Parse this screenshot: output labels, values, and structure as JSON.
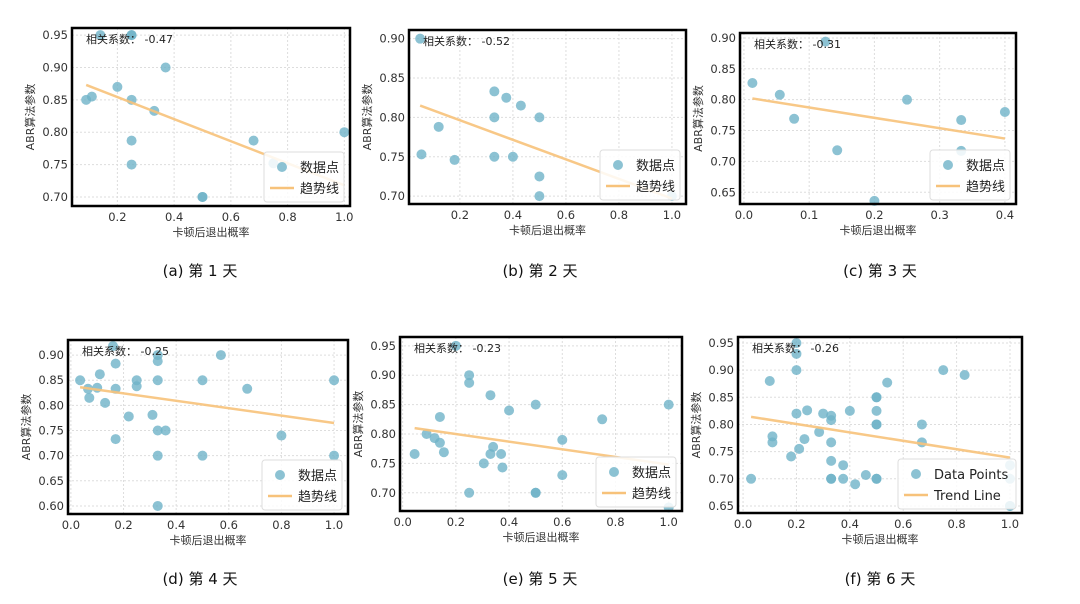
{
  "colors": {
    "points": "#6fb3c8",
    "trend": "#f7c27a",
    "frame": "#000000",
    "grid": "#dddddd"
  },
  "chart_data": [
    {
      "type": "scatter",
      "caption": "(a)  第 1 天",
      "annotation": "相关系数： -0.47",
      "xlabel": "卡顿后退出概率",
      "ylabel": "ABR算法参数",
      "legend": {
        "points": "数据点",
        "trend": "趋势线",
        "position": "lower-right"
      },
      "grid": true,
      "xlim": [
        0.04,
        1.02
      ],
      "ylim": [
        0.686,
        0.961
      ],
      "xticks": [
        "0.2",
        "0.4",
        "0.6",
        "0.8",
        "1.0"
      ],
      "yticks": [
        "0.70",
        "0.75",
        "0.80",
        "0.85",
        "0.90",
        "0.95"
      ],
      "points": [
        [
          0.14,
          0.95
        ],
        [
          0.25,
          0.95
        ],
        [
          0.25,
          0.95
        ],
        [
          0.37,
          0.9
        ],
        [
          0.2,
          0.87
        ],
        [
          0.09,
          0.85
        ],
        [
          0.11,
          0.855
        ],
        [
          0.25,
          0.85
        ],
        [
          0.33,
          0.833
        ],
        [
          0.25,
          0.787
        ],
        [
          0.25,
          0.75
        ],
        [
          0.5,
          0.7
        ],
        [
          0.5,
          0.7
        ],
        [
          0.68,
          0.787
        ],
        [
          0.75,
          0.752
        ],
        [
          1.0,
          0.8
        ]
      ],
      "trend": [
        [
          0.09,
          0.873
        ],
        [
          1.0,
          0.718
        ]
      ]
    },
    {
      "type": "scatter",
      "caption": "(b)  第 2 天",
      "annotation": "相关系数： -0.52",
      "xlabel": "卡顿后退出概率",
      "ylabel": "ABR算法参数",
      "legend": {
        "points": "数据点",
        "trend": "趋势线",
        "position": "lower-right"
      },
      "grid": true,
      "xlim": [
        0.008,
        1.053
      ],
      "ylim": [
        0.69,
        0.911
      ],
      "xticks": [
        "0.2",
        "0.4",
        "0.6",
        "0.8",
        "1.0"
      ],
      "yticks": [
        "0.70",
        "0.75",
        "0.80",
        "0.85",
        "0.90"
      ],
      "points": [
        [
          0.05,
          0.9
        ],
        [
          0.33,
          0.833
        ],
        [
          0.375,
          0.825
        ],
        [
          0.43,
          0.815
        ],
        [
          0.33,
          0.8
        ],
        [
          0.5,
          0.8
        ],
        [
          0.12,
          0.788
        ],
        [
          0.055,
          0.753
        ],
        [
          0.18,
          0.746
        ],
        [
          0.33,
          0.75
        ],
        [
          0.4,
          0.75
        ],
        [
          0.5,
          0.725
        ],
        [
          0.5,
          0.7
        ],
        [
          1.0,
          0.7
        ]
      ],
      "trend": [
        [
          0.05,
          0.815
        ],
        [
          1.0,
          0.697
        ]
      ]
    },
    {
      "type": "scatter",
      "caption": "(c)  第 3 天",
      "annotation": "相关系数： -0.31",
      "xlabel": "卡顿后退出概率",
      "ylabel": "ABR算法参数",
      "legend": {
        "points": "数据点",
        "trend": "趋势线",
        "position": "lower-right"
      },
      "grid": true,
      "xlim": [
        -0.006,
        0.417
      ],
      "ylim": [
        0.631,
        0.908
      ],
      "xticks": [
        "0.0",
        "0.1",
        "0.2",
        "0.3",
        "0.4"
      ],
      "yticks": [
        "0.65",
        "0.70",
        "0.75",
        "0.80",
        "0.85",
        "0.90"
      ],
      "points": [
        [
          0.013,
          0.827
        ],
        [
          0.055,
          0.808
        ],
        [
          0.077,
          0.769
        ],
        [
          0.125,
          0.894
        ],
        [
          0.143,
          0.718
        ],
        [
          0.2,
          0.636
        ],
        [
          0.25,
          0.8
        ],
        [
          0.333,
          0.767
        ],
        [
          0.333,
          0.717
        ],
        [
          0.4,
          0.78
        ]
      ],
      "trend": [
        [
          0.013,
          0.802
        ],
        [
          0.4,
          0.737
        ]
      ]
    },
    {
      "type": "scatter",
      "caption": "(d)  第 4 天",
      "annotation": "相关系数： -0.25",
      "xlabel": "卡顿后退出概率",
      "ylabel": "ABR算法参数",
      "legend": {
        "points": "数据点",
        "trend": "趋势线",
        "position": "lower-right"
      },
      "grid": true,
      "xlim": [
        -0.011,
        1.053
      ],
      "ylim": [
        0.584,
        0.93
      ],
      "xticks": [
        "0.0",
        "0.2",
        "0.4",
        "0.6",
        "0.8",
        "1.0"
      ],
      "yticks": [
        "0.60",
        "0.65",
        "0.70",
        "0.75",
        "0.80",
        "0.85",
        "0.90"
      ],
      "points": [
        [
          0.035,
          0.85
        ],
        [
          0.065,
          0.833
        ],
        [
          0.07,
          0.815
        ],
        [
          0.1,
          0.835
        ],
        [
          0.11,
          0.862
        ],
        [
          0.13,
          0.805
        ],
        [
          0.16,
          0.918
        ],
        [
          0.17,
          0.883
        ],
        [
          0.17,
          0.833
        ],
        [
          0.17,
          0.733
        ],
        [
          0.22,
          0.778
        ],
        [
          0.25,
          0.85
        ],
        [
          0.25,
          0.838
        ],
        [
          0.31,
          0.781
        ],
        [
          0.33,
          0.9
        ],
        [
          0.33,
          0.888
        ],
        [
          0.33,
          0.85
        ],
        [
          0.33,
          0.75
        ],
        [
          0.36,
          0.75
        ],
        [
          0.33,
          0.7
        ],
        [
          0.33,
          0.6
        ],
        [
          0.5,
          0.85
        ],
        [
          0.5,
          0.7
        ],
        [
          0.57,
          0.9
        ],
        [
          0.67,
          0.833
        ],
        [
          0.8,
          0.74
        ],
        [
          1.0,
          0.85
        ],
        [
          1.0,
          0.7
        ]
      ],
      "trend": [
        [
          0.035,
          0.836
        ],
        [
          1.0,
          0.765
        ]
      ]
    },
    {
      "type": "scatter",
      "caption": "(e)  第 5 天",
      "annotation": "相关系数： -0.23",
      "xlabel": "卡顿后退出概率",
      "ylabel": "ABR算法参数",
      "legend": {
        "points": "数据点",
        "trend": "趋势线",
        "position": "lower-right"
      },
      "grid": true,
      "xlim": [
        -0.01,
        1.05
      ],
      "ylim": [
        0.669,
        0.965
      ],
      "xticks": [
        "0.0",
        "0.2",
        "0.4",
        "0.6",
        "0.8",
        "1.0"
      ],
      "yticks": [
        "0.70",
        "0.75",
        "0.80",
        "0.85",
        "0.90",
        "0.95"
      ],
      "points": [
        [
          0.2,
          0.95
        ],
        [
          0.25,
          0.9
        ],
        [
          0.25,
          0.887
        ],
        [
          0.33,
          0.866
        ],
        [
          0.4,
          0.84
        ],
        [
          0.5,
          0.85
        ],
        [
          1.0,
          0.85
        ],
        [
          0.75,
          0.825
        ],
        [
          0.14,
          0.829
        ],
        [
          0.09,
          0.8
        ],
        [
          0.12,
          0.793
        ],
        [
          0.14,
          0.785
        ],
        [
          0.155,
          0.769
        ],
        [
          0.045,
          0.766
        ],
        [
          0.34,
          0.778
        ],
        [
          0.33,
          0.766
        ],
        [
          0.37,
          0.766
        ],
        [
          0.305,
          0.75
        ],
        [
          0.375,
          0.743
        ],
        [
          0.6,
          0.79
        ],
        [
          0.6,
          0.73
        ],
        [
          0.25,
          0.7
        ],
        [
          0.5,
          0.7
        ],
        [
          0.5,
          0.7
        ],
        [
          1.0,
          0.675
        ]
      ],
      "trend": [
        [
          0.045,
          0.81
        ],
        [
          1.0,
          0.748
        ]
      ]
    },
    {
      "type": "scatter",
      "caption": "(f)  第 6 天",
      "annotation": "相关系数： -0.26",
      "xlabel": "卡顿后退出概率",
      "ylabel": "ABR算法参数",
      "legend": {
        "points": "Data Points",
        "trend": "Trend Line",
        "position": "lower-right"
      },
      "grid": true,
      "xlim": [
        -0.019,
        1.045
      ],
      "ylim": [
        0.637,
        0.961
      ],
      "xticks": [
        "0.0",
        "0.2",
        "0.4",
        "0.6",
        "0.8",
        "1.0"
      ],
      "yticks": [
        "0.65",
        "0.70",
        "0.75",
        "0.80",
        "0.85",
        "0.90",
        "0.95"
      ],
      "points": [
        [
          0.2,
          0.95
        ],
        [
          0.2,
          0.93
        ],
        [
          0.2,
          0.9
        ],
        [
          0.1,
          0.88
        ],
        [
          0.75,
          0.9
        ],
        [
          0.83,
          0.891
        ],
        [
          0.54,
          0.877
        ],
        [
          0.5,
          0.85
        ],
        [
          0.5,
          0.85
        ],
        [
          0.2,
          0.82
        ],
        [
          0.24,
          0.826
        ],
        [
          0.3,
          0.82
        ],
        [
          0.33,
          0.816
        ],
        [
          0.33,
          0.808
        ],
        [
          0.4,
          0.825
        ],
        [
          0.5,
          0.825
        ],
        [
          0.5,
          0.8
        ],
        [
          0.5,
          0.8
        ],
        [
          0.67,
          0.8
        ],
        [
          0.11,
          0.778
        ],
        [
          0.11,
          0.767
        ],
        [
          0.23,
          0.773
        ],
        [
          0.285,
          0.786
        ],
        [
          0.33,
          0.767
        ],
        [
          0.21,
          0.755
        ],
        [
          0.18,
          0.741
        ],
        [
          0.67,
          0.767
        ],
        [
          0.33,
          0.733
        ],
        [
          0.375,
          0.725
        ],
        [
          0.03,
          0.7
        ],
        [
          0.33,
          0.7
        ],
        [
          0.33,
          0.7
        ],
        [
          0.375,
          0.7
        ],
        [
          0.42,
          0.69
        ],
        [
          0.46,
          0.707
        ],
        [
          0.5,
          0.7
        ],
        [
          0.5,
          0.7
        ],
        [
          1.0,
          0.725
        ],
        [
          1.0,
          0.7
        ],
        [
          1.0,
          0.65
        ],
        [
          1.0,
          0.65
        ]
      ],
      "trend": [
        [
          0.03,
          0.814
        ],
        [
          1.0,
          0.739
        ]
      ]
    }
  ]
}
